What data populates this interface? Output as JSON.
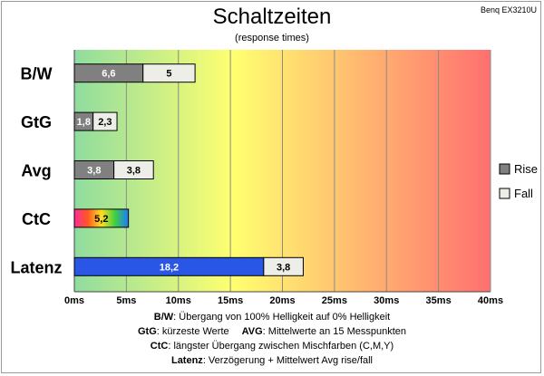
{
  "brand": "Benq EX3210U",
  "chart_data": {
    "type": "bar",
    "orientation": "horizontal",
    "stacked": true,
    "title": "Schaltzeiten",
    "subtitle": "(response times)",
    "categories": [
      "B/W",
      "GtG",
      "Avg",
      "CtC",
      "Latenz"
    ],
    "series": [
      {
        "name": "Rise",
        "values": [
          6.6,
          1.8,
          3.8,
          5.2,
          18.2
        ],
        "value_labels": [
          "6,6",
          "1,8",
          "3,8",
          "5,2",
          "18,2"
        ]
      },
      {
        "name": "Fall",
        "values": [
          5,
          2.3,
          3.8,
          null,
          3.8
        ],
        "value_labels": [
          "5",
          "2,3",
          "3,8",
          "",
          "3,8"
        ]
      }
    ],
    "x_ticks": [
      "0ms",
      "5ms",
      "10ms",
      "15ms",
      "20ms",
      "25ms",
      "30ms",
      "35ms",
      "40ms"
    ],
    "xlim": [
      0,
      40
    ],
    "grid": true,
    "legend_position": "right",
    "colors": {
      "rise": "#808080",
      "fall": "#eeeee8",
      "latenz": "#2a56e6",
      "background_gradient": [
        "#8fdc9f",
        "#ffff70",
        "#ff7070"
      ]
    }
  },
  "legend": {
    "rise": "Rise",
    "fall": "Fall"
  },
  "notes": {
    "line1_key": "B/W",
    "line1_text": ":  Übergang von 100% Helligkeit auf 0% Helligkeit",
    "line2_key_a": "GtG",
    "line2_text_a": ": kürzeste  Werte",
    "line2_key_b": "AVG",
    "line2_text_b": ": Mittelwerte  an 15 Messpunkten",
    "line3_key": "CtC",
    "line3_text": ": längster Übergang  zwischen Mischfarben  (C,M,Y)",
    "line4_key": "Latenz",
    "line4_text": ": Verzögerung  + Mittelwert Avg rise/fall"
  }
}
